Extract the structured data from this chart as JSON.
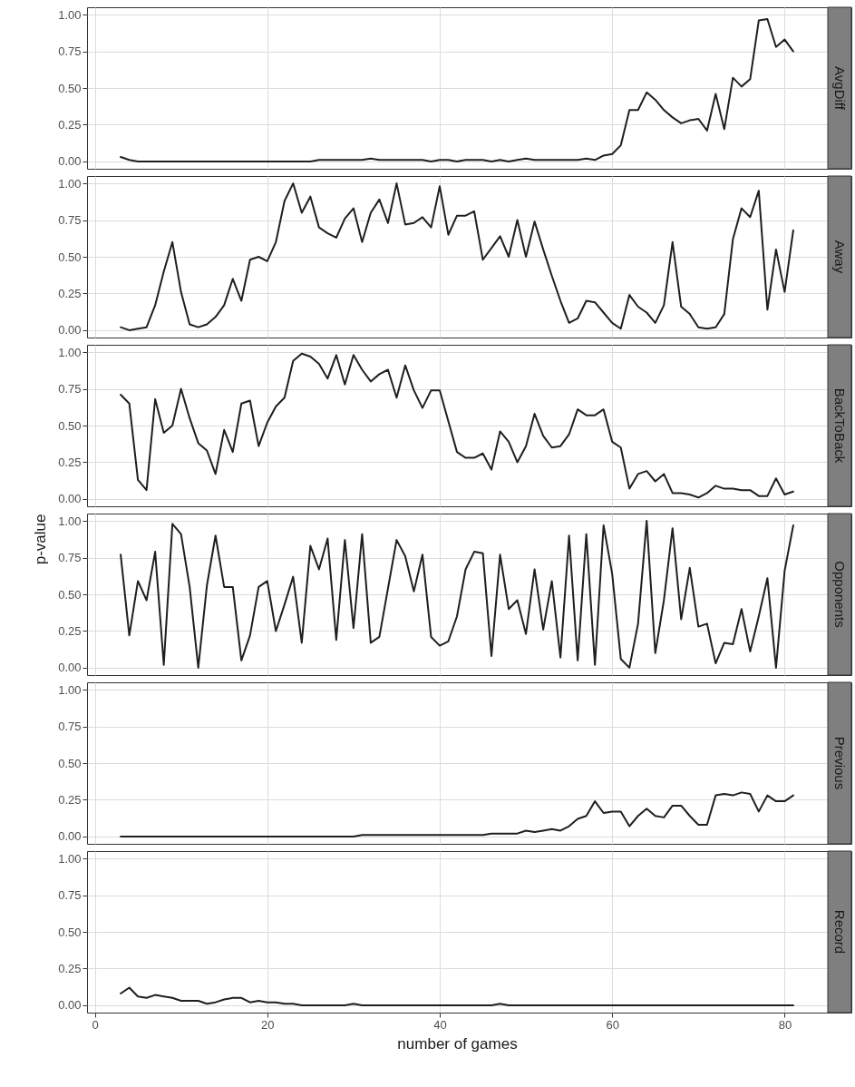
{
  "chart_data": [
    {
      "type": "line",
      "title": "AvgDiff",
      "color": "#1f1f1f",
      "grid": true,
      "tick_labels": "y",
      "xlim": [
        -0.9,
        84.9
      ],
      "xticks": [
        0,
        20,
        40,
        60,
        80
      ],
      "ylim": [
        -0.05,
        1.05
      ],
      "yticks": [
        {
          "value": 0,
          "label": "0.00"
        },
        {
          "value": 0.25,
          "label": "0.25"
        },
        {
          "value": 0.5,
          "label": "0.50"
        },
        {
          "value": 0.75,
          "label": "0.75"
        },
        {
          "value": 1,
          "label": "1.00"
        }
      ],
      "x": [
        3,
        4,
        5,
        6,
        7,
        8,
        9,
        10,
        11,
        12,
        13,
        14,
        15,
        16,
        17,
        18,
        19,
        20,
        21,
        22,
        23,
        24,
        25,
        26,
        27,
        28,
        29,
        30,
        31,
        32,
        33,
        34,
        35,
        36,
        37,
        38,
        39,
        40,
        41,
        42,
        43,
        44,
        45,
        46,
        47,
        48,
        49,
        50,
        51,
        52,
        53,
        54,
        55,
        56,
        57,
        58,
        59,
        60,
        61,
        62,
        63,
        64,
        65,
        66,
        67,
        68,
        69,
        70,
        71,
        72,
        73,
        74,
        75,
        76,
        77,
        78,
        79,
        80,
        81
      ],
      "values": [
        0.03,
        0.01,
        0,
        0,
        0,
        0,
        0,
        0,
        0,
        0,
        0,
        0,
        0,
        0,
        0,
        0,
        0,
        0,
        0,
        0,
        0,
        0,
        0,
        0.01,
        0.01,
        0.01,
        0.01,
        0.01,
        0.01,
        0.02,
        0.01,
        0.01,
        0.01,
        0.01,
        0.01,
        0.01,
        0,
        0.01,
        0.01,
        0,
        0.01,
        0.01,
        0.01,
        0,
        0.01,
        0,
        0.01,
        0.02,
        0.01,
        0.01,
        0.01,
        0.01,
        0.01,
        0.01,
        0.02,
        0.01,
        0.04,
        0.05,
        0.11,
        0.35,
        0.35,
        0.47,
        0.42,
        0.35,
        0.3,
        0.26,
        0.28,
        0.29,
        0.21,
        0.46,
        0.22,
        0.57,
        0.51,
        0.56,
        0.96,
        0.97,
        0.78,
        0.83,
        0.75
      ]
    },
    {
      "type": "line",
      "title": "Away",
      "color": "#1f1f1f",
      "grid": true,
      "tick_labels": "y",
      "xlim": [
        -0.9,
        84.9
      ],
      "xticks": [
        0,
        20,
        40,
        60,
        80
      ],
      "ylim": [
        -0.05,
        1.05
      ],
      "yticks": [
        {
          "value": 0,
          "label": "0.00"
        },
        {
          "value": 0.25,
          "label": "0.25"
        },
        {
          "value": 0.5,
          "label": "0.50"
        },
        {
          "value": 0.75,
          "label": "0.75"
        },
        {
          "value": 1,
          "label": "1.00"
        }
      ],
      "x": [
        3,
        4,
        5,
        6,
        7,
        8,
        9,
        10,
        11,
        12,
        13,
        14,
        15,
        16,
        17,
        18,
        19,
        20,
        21,
        22,
        23,
        24,
        25,
        26,
        27,
        28,
        29,
        30,
        31,
        32,
        33,
        34,
        35,
        36,
        37,
        38,
        39,
        40,
        41,
        42,
        43,
        44,
        45,
        46,
        47,
        48,
        49,
        50,
        51,
        52,
        53,
        54,
        55,
        56,
        57,
        58,
        59,
        60,
        61,
        62,
        63,
        64,
        65,
        66,
        67,
        68,
        69,
        70,
        71,
        72,
        73,
        74,
        75,
        76,
        77,
        78,
        79,
        80,
        81
      ],
      "values": [
        0.02,
        0,
        0.01,
        0.02,
        0.17,
        0.4,
        0.6,
        0.26,
        0.04,
        0.02,
        0.04,
        0.09,
        0.17,
        0.35,
        0.2,
        0.48,
        0.5,
        0.47,
        0.6,
        0.88,
        1.0,
        0.8,
        0.91,
        0.7,
        0.66,
        0.63,
        0.76,
        0.83,
        0.6,
        0.8,
        0.89,
        0.73,
        1.0,
        0.72,
        0.73,
        0.77,
        0.7,
        0.98,
        0.65,
        0.78,
        0.78,
        0.81,
        0.48,
        0.56,
        0.64,
        0.5,
        0.75,
        0.5,
        0.74,
        0.55,
        0.37,
        0.2,
        0.05,
        0.08,
        0.2,
        0.19,
        0.12,
        0.05,
        0.01,
        0.24,
        0.16,
        0.12,
        0.05,
        0.17,
        0.6,
        0.16,
        0.11,
        0.02,
        0.01,
        0.02,
        0.11,
        0.62,
        0.83,
        0.77,
        0.95,
        0.14,
        0.55,
        0.26,
        0.68
      ]
    },
    {
      "type": "line",
      "title": "BackToBack",
      "color": "#1f1f1f",
      "grid": true,
      "tick_labels": "y",
      "xlim": [
        -0.9,
        84.9
      ],
      "xticks": [
        0,
        20,
        40,
        60,
        80
      ],
      "ylim": [
        -0.05,
        1.05
      ],
      "yticks": [
        {
          "value": 0,
          "label": "0.00"
        },
        {
          "value": 0.25,
          "label": "0.25"
        },
        {
          "value": 0.5,
          "label": "0.50"
        },
        {
          "value": 0.75,
          "label": "0.75"
        },
        {
          "value": 1,
          "label": "1.00"
        }
      ],
      "x": [
        3,
        4,
        5,
        6,
        7,
        8,
        9,
        10,
        11,
        12,
        13,
        14,
        15,
        16,
        17,
        18,
        19,
        20,
        21,
        22,
        23,
        24,
        25,
        26,
        27,
        28,
        29,
        30,
        31,
        32,
        33,
        34,
        35,
        36,
        37,
        38,
        39,
        40,
        41,
        42,
        43,
        44,
        45,
        46,
        47,
        48,
        49,
        50,
        51,
        52,
        53,
        54,
        55,
        56,
        57,
        58,
        59,
        60,
        61,
        62,
        63,
        64,
        65,
        66,
        67,
        68,
        69,
        70,
        71,
        72,
        73,
        74,
        75,
        76,
        77,
        78,
        79,
        80,
        81
      ],
      "values": [
        0.71,
        0.65,
        0.13,
        0.06,
        0.68,
        0.45,
        0.5,
        0.75,
        0.55,
        0.38,
        0.33,
        0.17,
        0.47,
        0.32,
        0.65,
        0.67,
        0.36,
        0.52,
        0.63,
        0.69,
        0.94,
        0.99,
        0.97,
        0.92,
        0.82,
        0.98,
        0.78,
        0.98,
        0.88,
        0.8,
        0.85,
        0.88,
        0.69,
        0.91,
        0.74,
        0.62,
        0.74,
        0.74,
        0.53,
        0.32,
        0.28,
        0.28,
        0.31,
        0.2,
        0.46,
        0.39,
        0.25,
        0.36,
        0.58,
        0.43,
        0.35,
        0.36,
        0.44,
        0.61,
        0.57,
        0.57,
        0.61,
        0.39,
        0.35,
        0.07,
        0.17,
        0.19,
        0.12,
        0.17,
        0.04,
        0.04,
        0.03,
        0.01,
        0.04,
        0.09,
        0.07,
        0.07,
        0.06,
        0.06,
        0.02,
        0.02,
        0.14,
        0.03,
        0.05
      ]
    },
    {
      "type": "line",
      "title": "Opponents",
      "ylabel": "p-value",
      "color": "#1f1f1f",
      "grid": true,
      "tick_labels": "y",
      "xlim": [
        -0.9,
        84.9
      ],
      "xticks": [
        0,
        20,
        40,
        60,
        80
      ],
      "ylim": [
        -0.05,
        1.05
      ],
      "yticks": [
        {
          "value": 0,
          "label": "0.00"
        },
        {
          "value": 0.25,
          "label": "0.25"
        },
        {
          "value": 0.5,
          "label": "0.50"
        },
        {
          "value": 0.75,
          "label": "0.75"
        },
        {
          "value": 1,
          "label": "1.00"
        }
      ],
      "x": [
        3,
        4,
        5,
        6,
        7,
        8,
        9,
        10,
        11,
        12,
        13,
        14,
        15,
        16,
        17,
        18,
        19,
        20,
        21,
        22,
        23,
        24,
        25,
        26,
        27,
        28,
        29,
        30,
        31,
        32,
        33,
        34,
        35,
        36,
        37,
        38,
        39,
        40,
        41,
        42,
        43,
        44,
        45,
        46,
        47,
        48,
        49,
        50,
        51,
        52,
        53,
        54,
        55,
        56,
        57,
        58,
        59,
        60,
        61,
        62,
        63,
        64,
        65,
        66,
        67,
        68,
        69,
        70,
        71,
        72,
        73,
        74,
        75,
        76,
        77,
        78,
        79,
        80,
        81
      ],
      "values": [
        0.77,
        0.22,
        0.59,
        0.46,
        0.79,
        0.02,
        0.98,
        0.91,
        0.55,
        0,
        0.56,
        0.9,
        0.55,
        0.55,
        0.05,
        0.22,
        0.55,
        0.59,
        0.25,
        0.43,
        0.62,
        0.17,
        0.83,
        0.67,
        0.88,
        0.19,
        0.87,
        0.27,
        0.91,
        0.17,
        0.21,
        0.54,
        0.87,
        0.76,
        0.52,
        0.77,
        0.21,
        0.15,
        0.18,
        0.35,
        0.67,
        0.79,
        0.78,
        0.08,
        0.77,
        0.4,
        0.46,
        0.23,
        0.67,
        0.26,
        0.59,
        0.07,
        0.9,
        0.05,
        0.91,
        0.02,
        0.97,
        0.64,
        0.06,
        0,
        0.3,
        1.0,
        0.1,
        0.46,
        0.95,
        0.33,
        0.68,
        0.28,
        0.3,
        0.03,
        0.17,
        0.16,
        0.4,
        0.11,
        0.35,
        0.61,
        0,
        0.66,
        0.97
      ]
    },
    {
      "type": "line",
      "title": "Previous",
      "color": "#1f1f1f",
      "grid": true,
      "tick_labels": "y",
      "xlim": [
        -0.9,
        84.9
      ],
      "xticks": [
        0,
        20,
        40,
        60,
        80
      ],
      "ylim": [
        -0.05,
        1.05
      ],
      "yticks": [
        {
          "value": 0,
          "label": "0.00"
        },
        {
          "value": 0.25,
          "label": "0.25"
        },
        {
          "value": 0.5,
          "label": "0.50"
        },
        {
          "value": 0.75,
          "label": "0.75"
        },
        {
          "value": 1,
          "label": "1.00"
        }
      ],
      "x": [
        3,
        4,
        5,
        6,
        7,
        8,
        9,
        10,
        11,
        12,
        13,
        14,
        15,
        16,
        17,
        18,
        19,
        20,
        21,
        22,
        23,
        24,
        25,
        26,
        27,
        28,
        29,
        30,
        31,
        32,
        33,
        34,
        35,
        36,
        37,
        38,
        39,
        40,
        41,
        42,
        43,
        44,
        45,
        46,
        47,
        48,
        49,
        50,
        51,
        52,
        53,
        54,
        55,
        56,
        57,
        58,
        59,
        60,
        61,
        62,
        63,
        64,
        65,
        66,
        67,
        68,
        69,
        70,
        71,
        72,
        73,
        74,
        75,
        76,
        77,
        78,
        79,
        80,
        81
      ],
      "values": [
        0,
        0,
        0,
        0,
        0,
        0,
        0,
        0,
        0,
        0,
        0,
        0,
        0,
        0,
        0,
        0,
        0,
        0,
        0,
        0,
        0,
        0,
        0,
        0,
        0,
        0,
        0,
        0,
        0.01,
        0.01,
        0.01,
        0.01,
        0.01,
        0.01,
        0.01,
        0.01,
        0.01,
        0.01,
        0.01,
        0.01,
        0.01,
        0.01,
        0.01,
        0.02,
        0.02,
        0.02,
        0.02,
        0.04,
        0.03,
        0.04,
        0.05,
        0.04,
        0.07,
        0.12,
        0.14,
        0.24,
        0.16,
        0.17,
        0.17,
        0.07,
        0.14,
        0.19,
        0.14,
        0.13,
        0.21,
        0.21,
        0.14,
        0.08,
        0.08,
        0.28,
        0.29,
        0.28,
        0.3,
        0.29,
        0.17,
        0.28,
        0.24,
        0.24,
        0.28
      ]
    },
    {
      "type": "line",
      "title": "Record",
      "xlabel": "number of games",
      "color": "#1f1f1f",
      "grid": true,
      "xlim": [
        -0.9,
        84.9
      ],
      "xticks": [
        0,
        20,
        40,
        60,
        80
      ],
      "ylim": [
        -0.05,
        1.05
      ],
      "yticks": [
        {
          "value": 0,
          "label": "0.00"
        },
        {
          "value": 0.25,
          "label": "0.25"
        },
        {
          "value": 0.5,
          "label": "0.50"
        },
        {
          "value": 0.75,
          "label": "0.75"
        },
        {
          "value": 1,
          "label": "1.00"
        }
      ],
      "x": [
        3,
        4,
        5,
        6,
        7,
        8,
        9,
        10,
        11,
        12,
        13,
        14,
        15,
        16,
        17,
        18,
        19,
        20,
        21,
        22,
        23,
        24,
        25,
        26,
        27,
        28,
        29,
        30,
        31,
        32,
        33,
        34,
        35,
        36,
        37,
        38,
        39,
        40,
        41,
        42,
        43,
        44,
        45,
        46,
        47,
        48,
        49,
        50,
        51,
        52,
        53,
        54,
        55,
        56,
        57,
        58,
        59,
        60,
        61,
        62,
        63,
        64,
        65,
        66,
        67,
        68,
        69,
        70,
        71,
        72,
        73,
        74,
        75,
        76,
        77,
        78,
        79,
        80,
        81
      ],
      "values": [
        0.08,
        0.12,
        0.06,
        0.05,
        0.07,
        0.06,
        0.05,
        0.03,
        0.03,
        0.03,
        0.01,
        0.02,
        0.04,
        0.05,
        0.05,
        0.02,
        0.03,
        0.02,
        0.02,
        0.01,
        0.01,
        0,
        0,
        0,
        0,
        0,
        0,
        0.01,
        0,
        0,
        0,
        0,
        0,
        0,
        0,
        0,
        0,
        0,
        0,
        0,
        0,
        0,
        0,
        0,
        0.01,
        0,
        0,
        0,
        0,
        0,
        0,
        0,
        0,
        0,
        0,
        0,
        0,
        0,
        0,
        0,
        0,
        0,
        0,
        0,
        0,
        0,
        0,
        0,
        0,
        0,
        0,
        0,
        0,
        0,
        0,
        0,
        0,
        0,
        0
      ]
    }
  ]
}
